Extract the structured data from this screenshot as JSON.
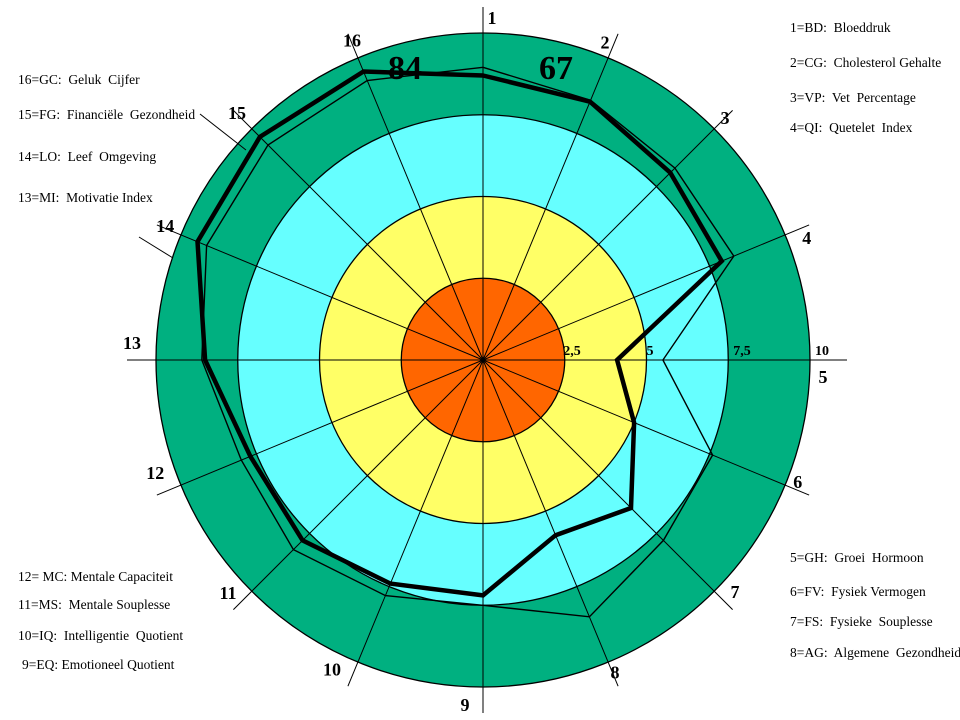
{
  "annotations": {
    "left_score": "84",
    "right_score": "67"
  },
  "legends": {
    "top_left": [
      "16=GC:  Geluk  Cijfer",
      "15=FG:  Financiële  Gezondheid",
      "14=LO:  Leef  Omgeving",
      "13=MI:  Motivatie Index"
    ],
    "bottom_left": [
      "12= MC: Mentale Capaciteit",
      "11=MS:  Mentale Souplesse",
      "10=IQ:  Intelligentie  Quotient",
      "9=EQ: Emotioneel Quotient"
    ],
    "top_right": [
      "1=BD:  Bloeddruk",
      "2=CG:  Cholesterol Gehalte",
      "3=VP:  Vet  Percentage",
      "4=QI:  Quetelet  Index"
    ],
    "bottom_right": [
      "5=GH:  Groei  Hormoon",
      "6=FV:  Fysiek Vermogen",
      "7=FS:  Fysieke  Souplesse",
      "8=AG:  Algemene  Gezondheid"
    ]
  },
  "chart_data": {
    "type": "radar",
    "axes": [
      "1",
      "2",
      "3",
      "4",
      "5",
      "6",
      "7",
      "8",
      "9",
      "10",
      "11",
      "12",
      "13",
      "14",
      "15",
      "16"
    ],
    "rmax": 10,
    "rings": [
      {
        "from": 0,
        "to": 2.5,
        "color": "#FF6600"
      },
      {
        "from": 2.5,
        "to": 5,
        "color": "#FFFF66"
      },
      {
        "from": 5,
        "to": 7.5,
        "color": "#66FFFF"
      },
      {
        "from": 7.5,
        "to": 10,
        "color": "#00B080"
      }
    ],
    "scale_ticks": [
      {
        "label": "2,5",
        "value": 2.5
      },
      {
        "label": "5",
        "value": 5
      },
      {
        "label": "7,5",
        "value": 7.5
      },
      {
        "label": "10",
        "value": 10
      }
    ],
    "series": [
      {
        "name": "score-profile-thick",
        "values": [
          8.7,
          8.55,
          8.1,
          7.9,
          4.1,
          5.0,
          6.4,
          5.8,
          7.2,
          7.4,
          7.8,
          7.7,
          8.5,
          9.45,
          9.65,
          9.55
        ]
      },
      {
        "name": "score-profile-thin",
        "values": [
          8.95,
          8.6,
          8.3,
          8.3,
          5.5,
          7.6,
          7.8,
          8.5,
          7.5,
          7.8,
          8.2,
          8.0,
          8.6,
          9.15,
          9.3,
          9.25
        ]
      }
    ],
    "line_color": "#000000"
  }
}
